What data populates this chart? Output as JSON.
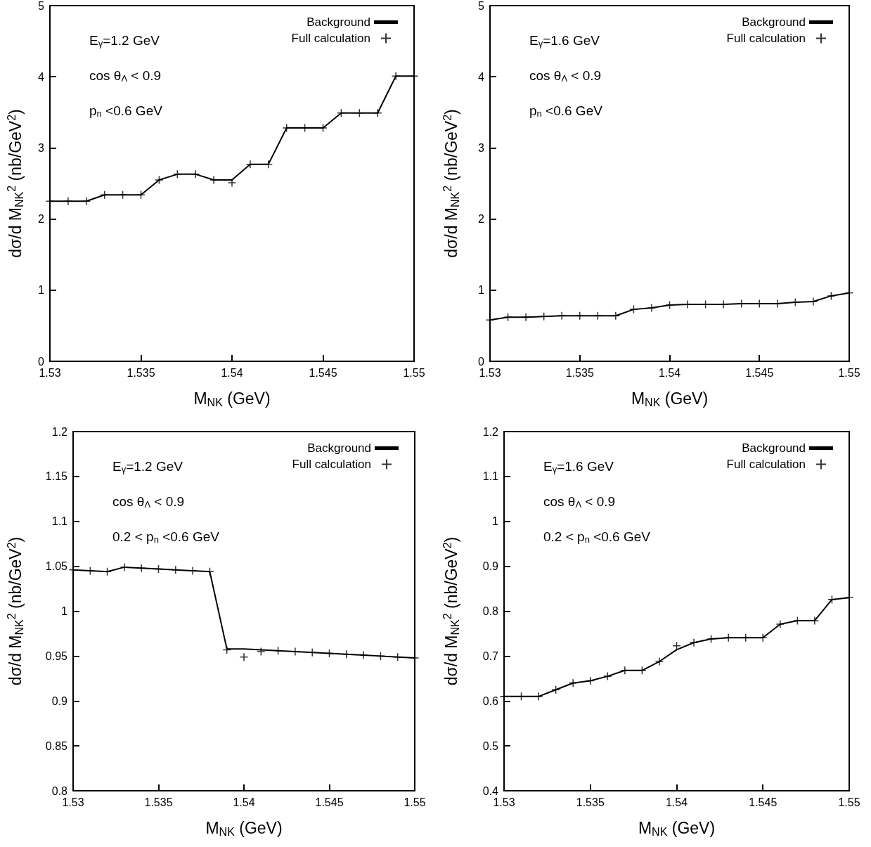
{
  "chart_data": [
    {
      "type": "line",
      "xlabel": "M$_{NK}$ (GeV)",
      "ylabel": "dσ/d M$_{NK}$$^{2}$ (nb/GeV$^{2}$)",
      "annotations": [
        "E$_{γ}$=1.2 GeV",
        "cos θ$_{Λ}$ < 0.9",
        "p$_{n}$ <0.6 GeV"
      ],
      "x": [
        1.53,
        1.531,
        1.532,
        1.533,
        1.534,
        1.535,
        1.536,
        1.537,
        1.538,
        1.539,
        1.54,
        1.541,
        1.542,
        1.543,
        1.544,
        1.545,
        1.546,
        1.547,
        1.548,
        1.549,
        1.55
      ],
      "xlim": [
        1.53,
        1.55
      ],
      "xticks": [
        1.53,
        1.535,
        1.54,
        1.545,
        1.55
      ],
      "ylim": [
        0,
        5
      ],
      "yticks": [
        0,
        1,
        2,
        3,
        4,
        5
      ],
      "legend": "top right",
      "series": [
        {
          "name": "Background",
          "marker": "none",
          "color": "#000000",
          "values": [
            2.25,
            2.25,
            2.25,
            2.34,
            2.34,
            2.34,
            2.55,
            2.63,
            2.63,
            2.55,
            2.55,
            2.77,
            2.77,
            3.28,
            3.28,
            3.28,
            3.49,
            3.49,
            3.49,
            4.01,
            4.01
          ]
        },
        {
          "name": "Full calculation",
          "type": "scatter",
          "marker": "cross",
          "color": "#000000",
          "values": [
            2.25,
            2.25,
            2.25,
            2.34,
            2.34,
            2.34,
            2.55,
            2.63,
            2.63,
            2.55,
            2.51,
            2.77,
            2.77,
            3.28,
            3.28,
            3.28,
            3.49,
            3.49,
            3.49,
            4.01,
            4.01
          ]
        }
      ]
    },
    {
      "type": "line",
      "xlabel": "M$_{NK}$ (GeV)",
      "ylabel": "dσ/d M$_{NK}$$^{2}$ (nb/GeV$^{2}$)",
      "annotations": [
        "E$_{γ}$=1.6 GeV",
        "cos θ$_{Λ}$ < 0.9",
        "p$_{n}$ <0.6 GeV"
      ],
      "x": [
        1.53,
        1.531,
        1.532,
        1.533,
        1.534,
        1.535,
        1.536,
        1.537,
        1.538,
        1.539,
        1.54,
        1.541,
        1.542,
        1.543,
        1.544,
        1.545,
        1.546,
        1.547,
        1.548,
        1.549,
        1.55
      ],
      "xlim": [
        1.53,
        1.55
      ],
      "xticks": [
        1.53,
        1.535,
        1.54,
        1.545,
        1.55
      ],
      "ylim": [
        0,
        5
      ],
      "yticks": [
        0,
        1,
        2,
        3,
        4,
        5
      ],
      "legend": "top right",
      "series": [
        {
          "name": "Background",
          "marker": "none",
          "color": "#000000",
          "values": [
            0.58,
            0.62,
            0.62,
            0.63,
            0.64,
            0.64,
            0.64,
            0.64,
            0.73,
            0.75,
            0.79,
            0.8,
            0.8,
            0.8,
            0.81,
            0.81,
            0.81,
            0.83,
            0.84,
            0.92,
            0.96
          ]
        },
        {
          "name": "Full calculation",
          "type": "scatter",
          "marker": "cross",
          "color": "#000000",
          "values": [
            0.58,
            0.62,
            0.62,
            0.63,
            0.64,
            0.64,
            0.64,
            0.64,
            0.73,
            0.75,
            0.79,
            0.8,
            0.8,
            0.8,
            0.81,
            0.81,
            0.81,
            0.83,
            0.84,
            0.92,
            0.96
          ]
        }
      ]
    },
    {
      "type": "line",
      "xlabel": "M$_{NK}$ (GeV)",
      "ylabel": "dσ/d M$_{NK}$$^{2}$ (nb/GeV$^{2}$)",
      "annotations": [
        "E$_{γ}$=1.2 GeV",
        "cos θ$_{Λ}$ < 0.9",
        "0.2 < p$_{n}$ <0.6 GeV"
      ],
      "x": [
        1.53,
        1.531,
        1.532,
        1.533,
        1.534,
        1.535,
        1.536,
        1.537,
        1.538,
        1.539,
        1.54,
        1.541,
        1.542,
        1.543,
        1.544,
        1.545,
        1.546,
        1.547,
        1.548,
        1.549,
        1.55
      ],
      "xlim": [
        1.53,
        1.55
      ],
      "xticks": [
        1.53,
        1.535,
        1.54,
        1.545,
        1.55
      ],
      "ylim": [
        0.8,
        1.2
      ],
      "yticks": [
        0.8,
        0.85,
        0.9,
        0.95,
        1,
        1.05,
        1.1,
        1.15,
        1.2
      ],
      "legend": "top right",
      "series": [
        {
          "name": "Background",
          "marker": "none",
          "color": "#000000",
          "values": [
            1.046,
            1.045,
            1.044,
            1.049,
            1.048,
            1.047,
            1.046,
            1.045,
            1.044,
            0.958,
            0.958,
            0.957,
            0.956,
            0.955,
            0.954,
            0.953,
            0.952,
            0.951,
            0.95,
            0.949,
            0.948
          ]
        },
        {
          "name": "Full calculation",
          "type": "scatter",
          "marker": "cross",
          "color": "#000000",
          "values": [
            1.046,
            1.045,
            1.044,
            1.049,
            1.048,
            1.047,
            1.046,
            1.045,
            1.044,
            0.957,
            0.949,
            0.955,
            0.956,
            0.955,
            0.954,
            0.953,
            0.952,
            0.951,
            0.95,
            0.949,
            0.948
          ]
        }
      ]
    },
    {
      "type": "line",
      "xlabel": "M$_{NK}$ (GeV)",
      "ylabel": "dσ/d M$_{NK}$$^{2}$ (nb/GeV$^{2}$)",
      "annotations": [
        "E$_{γ}$=1.6 GeV",
        "cos θ$_{Λ}$ < 0.9",
        "0.2 < p$_{n}$ <0.6 GeV"
      ],
      "x": [
        1.53,
        1.531,
        1.532,
        1.533,
        1.534,
        1.535,
        1.536,
        1.537,
        1.538,
        1.539,
        1.54,
        1.541,
        1.542,
        1.543,
        1.544,
        1.545,
        1.546,
        1.547,
        1.548,
        1.549,
        1.55
      ],
      "xlim": [
        1.53,
        1.55
      ],
      "xticks": [
        1.53,
        1.535,
        1.54,
        1.545,
        1.55
      ],
      "ylim": [
        0.4,
        1.2
      ],
      "yticks": [
        0.4,
        0.5,
        0.6,
        0.7,
        0.8,
        0.9,
        1,
        1.1,
        1.2
      ],
      "legend": "top right",
      "series": [
        {
          "name": "Background",
          "marker": "none",
          "color": "#000000",
          "values": [
            0.61,
            0.61,
            0.61,
            0.625,
            0.64,
            0.645,
            0.655,
            0.668,
            0.668,
            0.688,
            0.714,
            0.73,
            0.738,
            0.741,
            0.741,
            0.741,
            0.771,
            0.779,
            0.779,
            0.826,
            0.83
          ]
        },
        {
          "name": "Full calculation",
          "type": "scatter",
          "marker": "cross",
          "color": "#000000",
          "values": [
            0.61,
            0.61,
            0.61,
            0.625,
            0.64,
            0.645,
            0.655,
            0.668,
            0.668,
            0.688,
            0.723,
            0.73,
            0.738,
            0.741,
            0.741,
            0.741,
            0.771,
            0.779,
            0.779,
            0.826,
            0.83
          ]
        }
      ]
    }
  ]
}
